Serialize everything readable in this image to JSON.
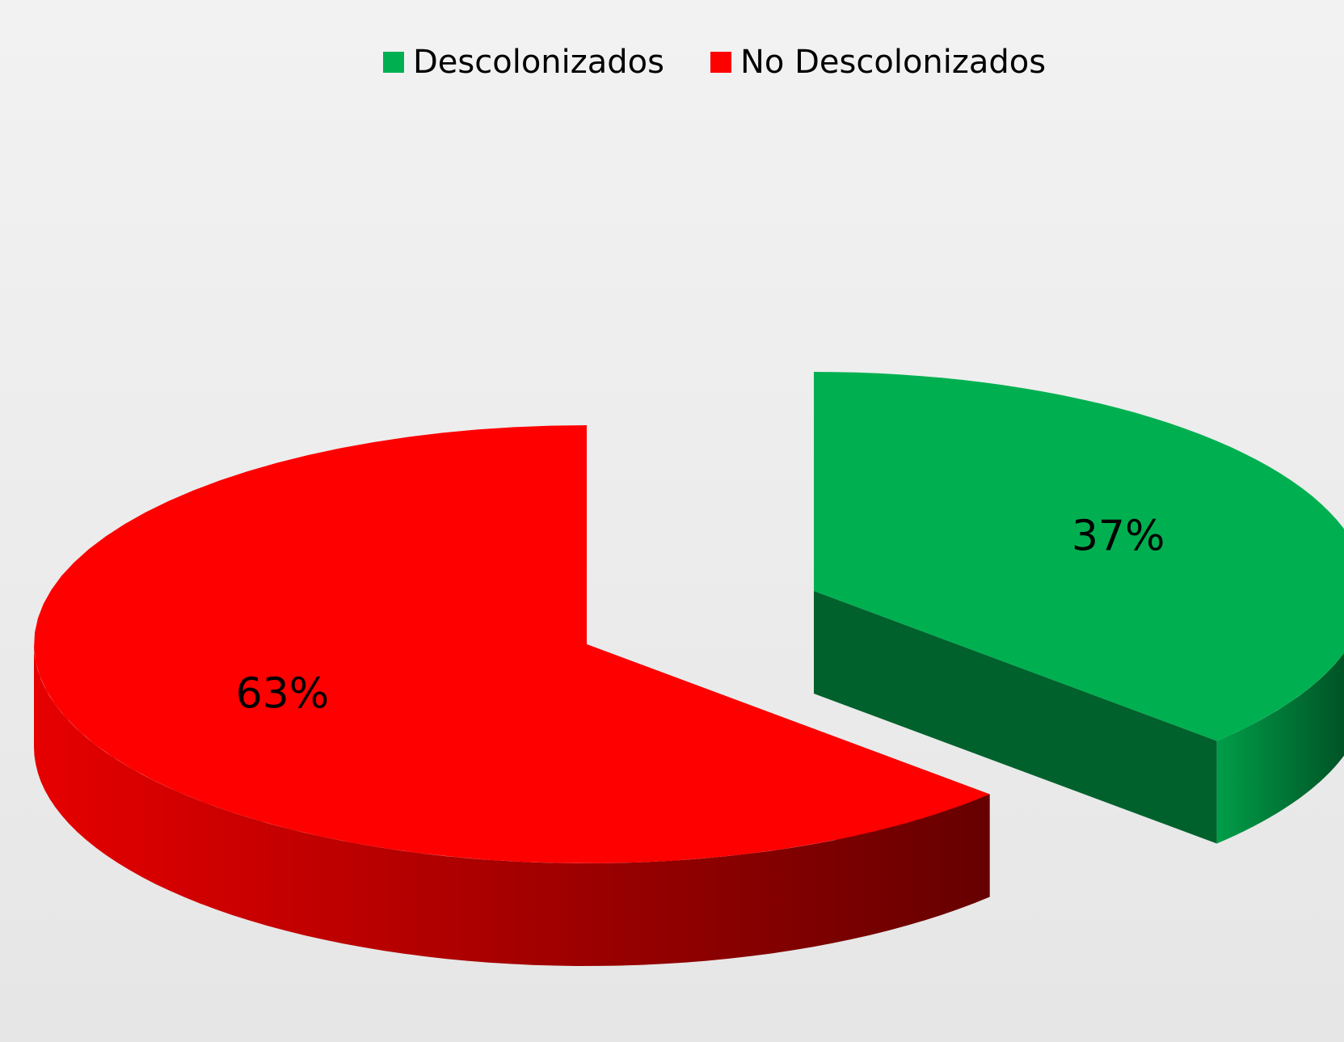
{
  "chart_data": {
    "type": "pie3d",
    "series": [
      {
        "name": "Descolonizados",
        "color": "#00b050"
      },
      {
        "name": "No Descolonizados",
        "color": "#ff0000"
      }
    ],
    "values": [
      37,
      63
    ],
    "value_labels": [
      "37%",
      "63%"
    ],
    "legend": "top"
  }
}
